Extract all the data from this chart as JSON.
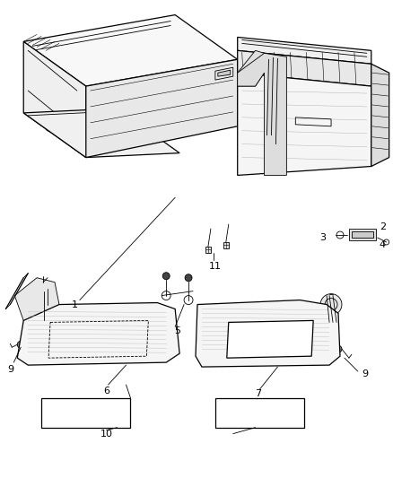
{
  "bg_color": "#ffffff",
  "line_color": "#000000",
  "text_color": "#000000",
  "fig_width": 4.39,
  "fig_height": 5.33,
  "dpi": 100
}
